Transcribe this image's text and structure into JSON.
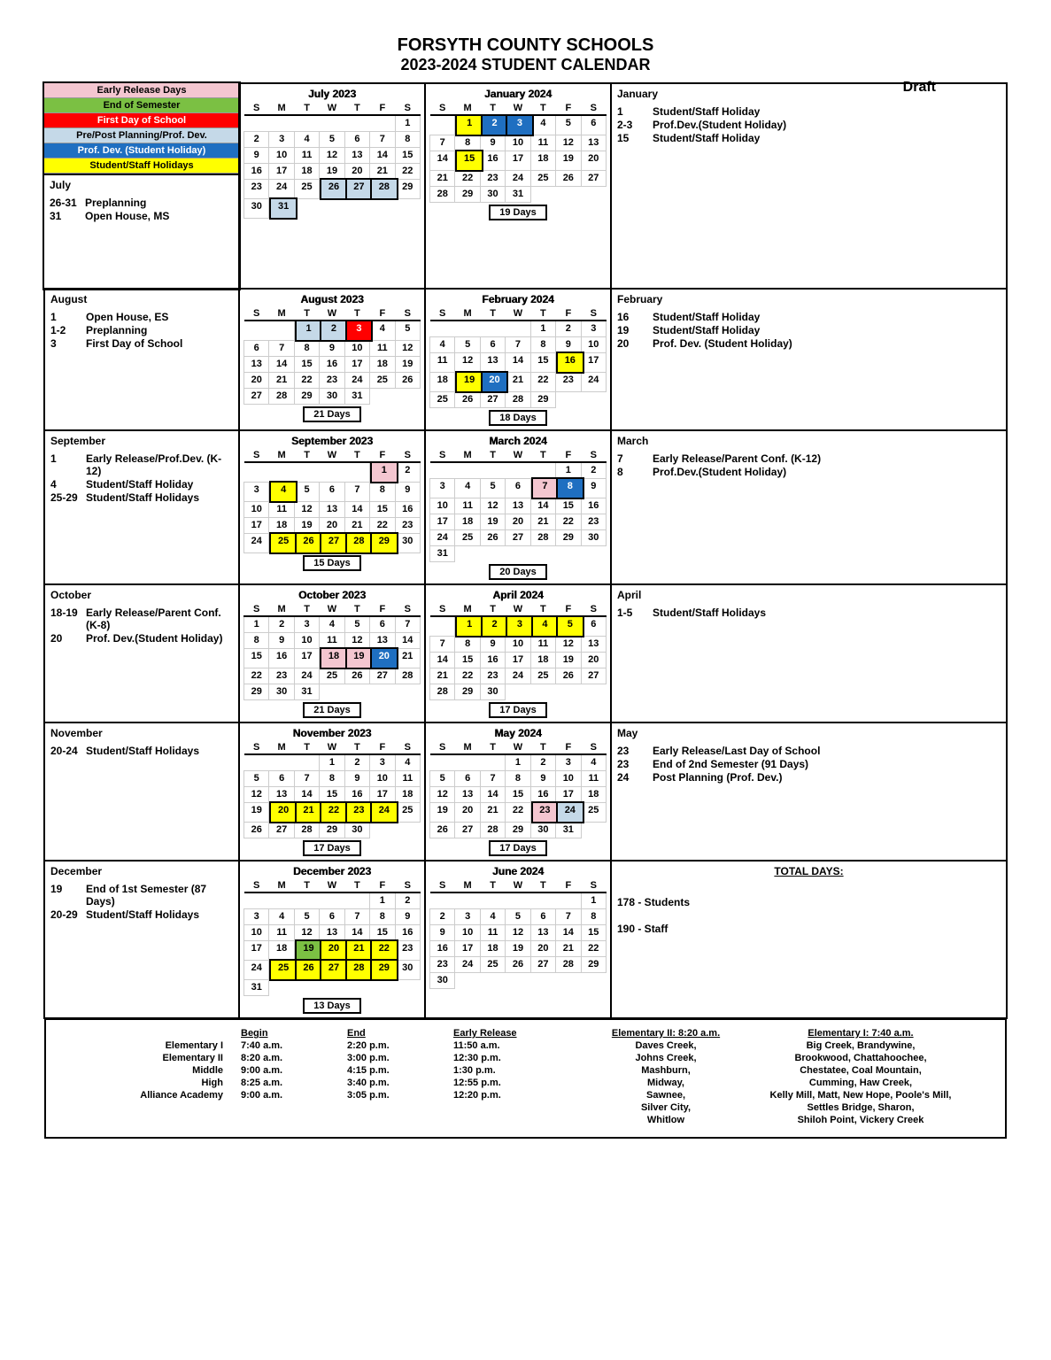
{
  "header": {
    "title": "FORSYTH COUNTY SCHOOLS",
    "subtitle": "2023-2024 STUDENT CALENDAR",
    "draft": "Draft"
  },
  "legend": [
    {
      "label": "Early Release Days",
      "bg": "#f4c6d0",
      "fg": "#000"
    },
    {
      "label": "End of Semester",
      "bg": "#7bc043",
      "fg": "#000"
    },
    {
      "label": "First Day of School",
      "bg": "#ff0000",
      "fg": "#fff"
    },
    {
      "label": "Pre/Post Planning/Prof. Dev.",
      "bg": "#c5d9e8",
      "fg": "#000"
    },
    {
      "label": "Prof. Dev. (Student Holiday)",
      "bg": "#1f6fc1",
      "fg": "#fff"
    },
    {
      "label": "Student/Staff Holidays",
      "bg": "#ffff00",
      "fg": "#000"
    }
  ],
  "colors": {
    "pink": "#f4c6d0",
    "green": "#7bc043",
    "red": "#ff0000",
    "ltblue": "#c5d9e8",
    "blue": "#1f6fc1",
    "yellow": "#ffff00"
  },
  "blocks": [
    {
      "evHd": "July",
      "events": [
        [
          "26-31",
          "Preplanning"
        ],
        [
          "31",
          "Open House, MS"
        ]
      ],
      "month": "July 2023",
      "days": null,
      "start": 6,
      "len": 31,
      "hi": {
        "26": "ltblue",
        "27": "ltblue",
        "28": "ltblue",
        "31": "ltblue"
      },
      "rHd": null,
      "rEv": []
    },
    {
      "month": "January 2024",
      "days": "19 Days",
      "start": 1,
      "len": 31,
      "hi": {
        "1": "yellow",
        "2": "blue",
        "3": "blue",
        "15": "yellow"
      },
      "rHd": "January",
      "rEv": [
        [
          "1",
          "Student/Staff Holiday"
        ],
        [
          "2-3",
          "Prof.Dev.(Student Holiday)"
        ],
        [
          "15",
          "Student/Staff Holiday"
        ]
      ]
    },
    {
      "evHd": "August",
      "events": [
        [
          "1",
          "Open House, ES"
        ],
        [
          "1-2",
          "Preplanning"
        ],
        [
          "3",
          "First Day of School"
        ]
      ],
      "month": "August 2023",
      "days": "21 Days",
      "start": 2,
      "len": 31,
      "hi": {
        "1": "ltblue",
        "2": "ltblue",
        "3": "red"
      },
      "rHd": null,
      "rEv": []
    },
    {
      "month": "February 2024",
      "days": "18 Days",
      "start": 4,
      "len": 29,
      "hi": {
        "16": "yellow",
        "19": "yellow",
        "20": "blue"
      },
      "rHd": "February",
      "rEv": [
        [
          "16",
          "Student/Staff Holiday"
        ],
        [
          "19",
          "Student/Staff Holiday"
        ],
        [
          "20",
          "Prof. Dev. (Student Holiday)"
        ]
      ]
    },
    {
      "evHd": "September",
      "events": [
        [
          "1",
          "Early Release/Prof.Dev. (K-12)"
        ],
        [
          "4",
          "Student/Staff Holiday"
        ],
        [
          "25-29",
          "Student/Staff Holidays"
        ]
      ],
      "month": "September 2023",
      "days": "15 Days",
      "start": 5,
      "len": 30,
      "hi": {
        "1": "pink",
        "4": "yellow",
        "25": "yellow",
        "26": "yellow",
        "27": "yellow",
        "28": "yellow",
        "29": "yellow"
      },
      "rHd": null,
      "rEv": []
    },
    {
      "month": "March 2024",
      "days": "20 Days",
      "start": 5,
      "len": 31,
      "hi": {
        "7": "pink",
        "8": "blue"
      },
      "rHd": "March",
      "rEv": [
        [
          "7",
          "Early Release/Parent Conf. (K-12)"
        ],
        [
          "8",
          "Prof.Dev.(Student Holiday)"
        ]
      ]
    },
    {
      "evHd": "October",
      "events": [
        [
          "18-19",
          "Early Release/Parent Conf. (K-8)"
        ],
        [
          "20",
          "Prof. Dev.(Student Holiday)"
        ]
      ],
      "month": "October 2023",
      "days": "21 Days",
      "start": 0,
      "len": 31,
      "hi": {
        "18": "pink",
        "19": "pink",
        "20": "blue"
      },
      "rHd": null,
      "rEv": []
    },
    {
      "month": "April 2024",
      "days": "17 Days",
      "start": 1,
      "len": 30,
      "hi": {
        "1": "yellow",
        "2": "yellow",
        "3": "yellow",
        "4": "yellow",
        "5": "yellow"
      },
      "rHd": "April",
      "rEv": [
        [
          "1-5",
          "Student/Staff Holidays"
        ]
      ]
    },
    {
      "evHd": "November",
      "events": [
        [
          "20-24",
          "Student/Staff Holidays"
        ]
      ],
      "month": "November 2023",
      "days": "17 Days",
      "start": 3,
      "len": 30,
      "hi": {
        "20": "yellow",
        "21": "yellow",
        "22": "yellow",
        "23": "yellow",
        "24": "yellow"
      },
      "rHd": null,
      "rEv": []
    },
    {
      "month": "May 2024",
      "days": "17  Days",
      "start": 3,
      "len": 31,
      "hi": {
        "23": "pink",
        "24": "ltblue"
      },
      "rHd": "May",
      "rEv": [
        [
          "23",
          "Early Release/Last Day of School"
        ],
        [
          "23",
          "End of 2nd Semester (91 Days)"
        ],
        [
          "24",
          "Post Planning (Prof. Dev.)"
        ]
      ]
    },
    {
      "evHd": "December",
      "events": [
        [
          "19",
          "End of 1st Semester (87 Days)"
        ],
        [
          "20-29",
          "Student/Staff Holidays"
        ]
      ],
      "month": "December 2023",
      "days": "13 Days",
      "start": 5,
      "len": 31,
      "hi": {
        "19": "green",
        "20": "yellow",
        "21": "yellow",
        "22": "yellow",
        "25": "yellow",
        "26": "yellow",
        "27": "yellow",
        "28": "yellow",
        "29": "yellow"
      },
      "rHd": null,
      "rEv": []
    },
    {
      "month": "June 2024",
      "days": null,
      "start": 6,
      "len": 30,
      "hi": {},
      "rHd": null,
      "rEv": [],
      "totals": true
    }
  ],
  "totals": {
    "hd": "TOTAL DAYS:",
    "lines": [
      "178 - Students",
      "",
      "190 - Staff"
    ]
  },
  "schedule": {
    "cols": [
      "",
      "Begin",
      "End",
      "Early Release"
    ],
    "rows": [
      [
        "Elementary I",
        "7:40 a.m.",
        "2:20 p.m.",
        "11:50 a.m."
      ],
      [
        "Elementary II",
        "8:20 a.m.",
        "3:00 p.m.",
        "12:30 p.m."
      ],
      [
        "Middle",
        "9:00 a.m.",
        "4:15 p.m.",
        "1:30 p.m."
      ],
      [
        "High",
        "8:25 a.m.",
        "3:40 p.m.",
        "12:55 p.m."
      ],
      [
        "Alliance Academy",
        "9:00 a.m.",
        "3:05 p.m.",
        "12:20 p.m."
      ]
    ],
    "schools": [
      {
        "hd": "Elementary II: 8:20 a.m.",
        "list": [
          "Daves Creek,",
          "Johns Creek,",
          "Mashburn,",
          "Midway,",
          "Sawnee,",
          "Silver City,",
          "Whitlow"
        ]
      },
      {
        "hd": "Elementary I: 7:40 a.m.",
        "list": [
          "Big Creek, Brandywine,",
          "Brookwood, Chattahoochee,",
          "Chestatee, Coal Mountain,",
          "Cumming, Haw Creek,",
          "Kelly Mill, Matt, New Hope, Poole's Mill,",
          "Settles Bridge, Sharon,",
          "Shiloh Point, Vickery Creek"
        ]
      }
    ]
  },
  "dow": [
    "S",
    "M",
    "T",
    "W",
    "T",
    "F",
    "S"
  ]
}
